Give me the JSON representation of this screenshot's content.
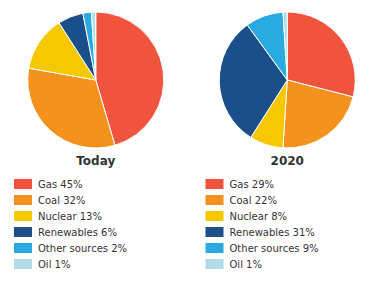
{
  "chart_data": [
    {
      "type": "pie",
      "title": "Today",
      "categories": [
        "Gas 45%",
        "Coal 32%",
        "Nuclear 13%",
        "Renewables 6%",
        "Other sources 2%",
        "Oil 1%"
      ],
      "values": [
        45,
        32,
        13,
        6,
        2,
        1
      ],
      "colors": [
        "#f0543c",
        "#f5921e",
        "#f5c800",
        "#1a4f8a",
        "#29abe2",
        "#b2dce8"
      ],
      "legend": "bottom"
    },
    {
      "type": "pie",
      "title": "2020",
      "categories": [
        "Gas 29%",
        "Coal 22%",
        "Nuclear 8%",
        "Renewables 31%",
        "Other sources 9%",
        "Oil 1%"
      ],
      "values": [
        29,
        22,
        8,
        31,
        9,
        1
      ],
      "colors": [
        "#f0543c",
        "#f5921e",
        "#f5c800",
        "#1a4f8a",
        "#29abe2",
        "#b2dce8"
      ],
      "legend": "bottom"
    }
  ]
}
